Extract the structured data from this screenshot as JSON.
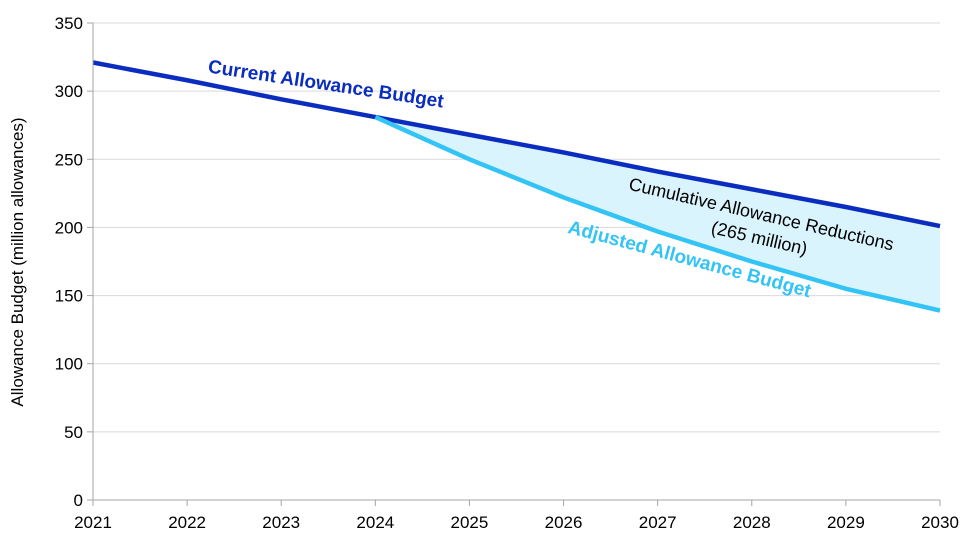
{
  "chart_data": {
    "type": "line",
    "title": "",
    "xlabel": "",
    "ylabel": "Allowance Budget (million allowances)",
    "x": [
      2021,
      2022,
      2023,
      2024,
      2025,
      2026,
      2027,
      2028,
      2029,
      2030
    ],
    "xlim": [
      2021,
      2030
    ],
    "ylim": [
      0,
      350
    ],
    "yticks": [
      0,
      50,
      100,
      150,
      200,
      250,
      300,
      350
    ],
    "grid": true,
    "series": [
      {
        "name": "Current Allowance Budget",
        "color": "#0a2dbf",
        "values": [
          321,
          308,
          294,
          281,
          268,
          255,
          241,
          228,
          215,
          201
        ]
      },
      {
        "name": "Adjusted Allowance Budget",
        "color": "#33c4f5",
        "values": [
          null,
          null,
          null,
          281,
          250,
          222,
          197,
          175,
          155,
          139
        ]
      }
    ],
    "fill_between": {
      "color": "#daf4fd"
    },
    "annotations": [
      "Cumulative Allowance Reductions",
      "(265 million)"
    ]
  }
}
